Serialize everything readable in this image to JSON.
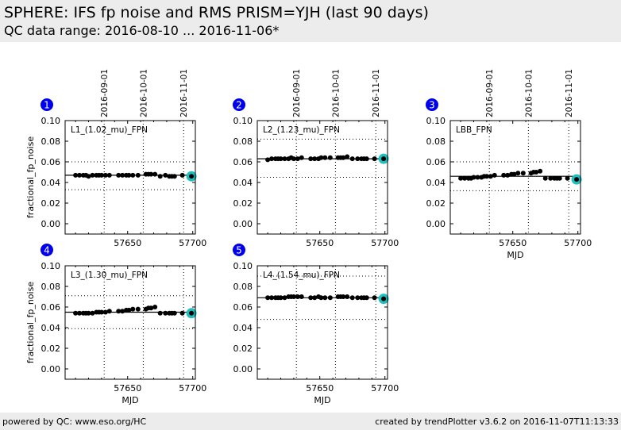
{
  "header": {
    "title": "SPHERE: IFS fp noise and RMS PRISM=YJH (last 90 days)",
    "subtitle": "QC data range: 2016-08-10 ... 2016-11-06*"
  },
  "footer": {
    "left": "powered by QC: www.eso.org/HC",
    "right": "created by trendPlotter v3.6.2 on 2016-11-07T11:13:33"
  },
  "colors": {
    "marker": "#000000",
    "highlight": "#20c0c0",
    "badge": "#0000ee",
    "header_bg": "#ececec"
  },
  "chart_data": [
    {
      "type": "scatter",
      "panel": "1",
      "label": "L1_(1.02_mu)_FPN",
      "ylabel": "fractional_fp_noise",
      "xlabel": "",
      "xlim": [
        57602,
        57702
      ],
      "ylim": [
        -0.01,
        0.1
      ],
      "xticks": [
        57650,
        57700
      ],
      "yticks": [
        "0.10",
        "0.08",
        "0.06",
        "0.04",
        "0.02",
        "0.00"
      ],
      "date_ticks": [
        {
          "label": "2016-09-01",
          "mjd": 57632
        },
        {
          "label": "2016-10-01",
          "mjd": 57662
        },
        {
          "label": "2016-11-01",
          "mjd": 57693
        }
      ],
      "mean": 0.047,
      "limits": [
        0.033,
        0.06
      ],
      "x": [
        57610,
        57613,
        57616,
        57618,
        57620,
        57623,
        57626,
        57628,
        57630,
        57633,
        57636,
        57643,
        57646,
        57649,
        57651,
        57654,
        57658,
        57664,
        57666,
        57668,
        57671,
        57675,
        57679,
        57682,
        57684,
        57686,
        57692,
        57699
      ],
      "y": [
        0.047,
        0.047,
        0.047,
        0.047,
        0.046,
        0.047,
        0.047,
        0.047,
        0.047,
        0.047,
        0.047,
        0.047,
        0.047,
        0.047,
        0.047,
        0.047,
        0.047,
        0.048,
        0.048,
        0.048,
        0.048,
        0.046,
        0.047,
        0.046,
        0.046,
        0.046,
        0.047,
        0.046
      ],
      "highlight_index": 27
    },
    {
      "type": "scatter",
      "panel": "2",
      "label": "L2_(1.23_mu)_FPN",
      "ylabel": "",
      "xlabel": "",
      "xlim": [
        57602,
        57702
      ],
      "ylim": [
        -0.01,
        0.1
      ],
      "xticks": [
        57650,
        57700
      ],
      "yticks": [
        "0.10",
        "0.08",
        "0.06",
        "0.04",
        "0.02",
        "0.00"
      ],
      "date_ticks": [
        {
          "label": "2016-09-01",
          "mjd": 57632
        },
        {
          "label": "2016-10-01",
          "mjd": 57662
        },
        {
          "label": "2016-11-01",
          "mjd": 57693
        }
      ],
      "mean": 0.063,
      "limits": [
        0.045,
        0.082
      ],
      "x": [
        57610,
        57613,
        57616,
        57618,
        57620,
        57623,
        57626,
        57628,
        57630,
        57633,
        57636,
        57643,
        57646,
        57649,
        57651,
        57654,
        57658,
        57664,
        57666,
        57668,
        57671,
        57675,
        57679,
        57682,
        57684,
        57686,
        57692,
        57699
      ],
      "y": [
        0.062,
        0.063,
        0.063,
        0.063,
        0.063,
        0.063,
        0.063,
        0.064,
        0.063,
        0.063,
        0.064,
        0.063,
        0.063,
        0.063,
        0.064,
        0.064,
        0.064,
        0.064,
        0.064,
        0.064,
        0.065,
        0.063,
        0.063,
        0.063,
        0.063,
        0.063,
        0.063,
        0.063
      ],
      "highlight_index": 27
    },
    {
      "type": "scatter",
      "panel": "3",
      "label": "LBB_FPN",
      "ylabel": "",
      "xlabel": "MJD",
      "xlim": [
        57602,
        57702
      ],
      "ylim": [
        -0.01,
        0.1
      ],
      "xticks": [
        57650,
        57700
      ],
      "yticks": [
        "0.10",
        "0.08",
        "0.06",
        "0.04",
        "0.02",
        "0.00"
      ],
      "date_ticks": [
        {
          "label": "2016-09-01",
          "mjd": 57632
        },
        {
          "label": "2016-10-01",
          "mjd": 57662
        },
        {
          "label": "2016-11-01",
          "mjd": 57693
        }
      ],
      "mean": 0.046,
      "limits": [
        0.032,
        0.06
      ],
      "x": [
        57610,
        57613,
        57616,
        57618,
        57620,
        57623,
        57626,
        57628,
        57630,
        57633,
        57636,
        57643,
        57646,
        57649,
        57651,
        57654,
        57658,
        57664,
        57666,
        57668,
        57671,
        57675,
        57679,
        57682,
        57684,
        57686,
        57692,
        57699
      ],
      "y": [
        0.044,
        0.044,
        0.044,
        0.044,
        0.045,
        0.045,
        0.045,
        0.046,
        0.046,
        0.046,
        0.047,
        0.047,
        0.047,
        0.048,
        0.048,
        0.049,
        0.049,
        0.049,
        0.05,
        0.05,
        0.051,
        0.044,
        0.044,
        0.044,
        0.044,
        0.044,
        0.044,
        0.043
      ],
      "highlight_index": 27
    },
    {
      "type": "scatter",
      "panel": "4",
      "label": "L3_(1.30_mu)_FPN",
      "ylabel": "fractional_fp_noise",
      "xlabel": "MJD",
      "xlim": [
        57602,
        57702
      ],
      "ylim": [
        -0.01,
        0.1
      ],
      "xticks": [
        57650,
        57700
      ],
      "yticks": [
        "0.10",
        "0.08",
        "0.06",
        "0.04",
        "0.02",
        "0.00"
      ],
      "date_ticks": [],
      "mean": 0.055,
      "limits": [
        0.039,
        0.071
      ],
      "x": [
        57610,
        57613,
        57616,
        57618,
        57620,
        57623,
        57626,
        57628,
        57630,
        57633,
        57636,
        57643,
        57646,
        57649,
        57651,
        57654,
        57658,
        57664,
        57666,
        57668,
        57671,
        57675,
        57679,
        57682,
        57684,
        57686,
        57692,
        57699
      ],
      "y": [
        0.054,
        0.054,
        0.054,
        0.054,
        0.054,
        0.054,
        0.055,
        0.055,
        0.055,
        0.055,
        0.056,
        0.056,
        0.056,
        0.057,
        0.057,
        0.058,
        0.058,
        0.058,
        0.059,
        0.059,
        0.06,
        0.054,
        0.054,
        0.054,
        0.054,
        0.054,
        0.054,
        0.054
      ],
      "highlight_index": 27
    },
    {
      "type": "scatter",
      "panel": "5",
      "label": "L4_(1.54_mu)_FPN",
      "ylabel": "",
      "xlabel": "MJD",
      "xlim": [
        57602,
        57702
      ],
      "ylim": [
        -0.01,
        0.1
      ],
      "xticks": [
        57650,
        57700
      ],
      "yticks": [
        "0.10",
        "0.08",
        "0.06",
        "0.04",
        "0.02",
        "0.00"
      ],
      "date_ticks": [],
      "mean": 0.069,
      "limits": [
        0.048,
        0.09
      ],
      "x": [
        57610,
        57613,
        57616,
        57618,
        57620,
        57623,
        57626,
        57628,
        57630,
        57633,
        57636,
        57643,
        57646,
        57649,
        57651,
        57654,
        57658,
        57664,
        57666,
        57668,
        57671,
        57675,
        57679,
        57682,
        57684,
        57686,
        57692,
        57699
      ],
      "y": [
        0.069,
        0.069,
        0.069,
        0.069,
        0.069,
        0.069,
        0.07,
        0.07,
        0.07,
        0.07,
        0.07,
        0.069,
        0.069,
        0.07,
        0.069,
        0.069,
        0.069,
        0.07,
        0.07,
        0.07,
        0.07,
        0.069,
        0.069,
        0.069,
        0.069,
        0.069,
        0.069,
        0.068
      ],
      "highlight_index": 27
    }
  ]
}
